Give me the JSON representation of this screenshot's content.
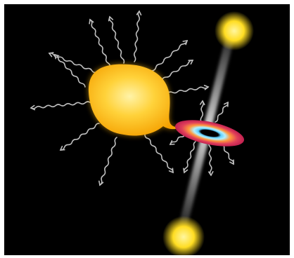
{
  "scene": {
    "subject": "star-with-accretion-disk-and-jets",
    "colors": {
      "background": "#000000",
      "frame": "#ffffff",
      "star_core": "#fff3a8",
      "star_mid": "#ffd23a",
      "star_edge": "#f5a000",
      "disk_outer": "#e0405a",
      "disk_mid": "#ff9a3c",
      "disk_blue": "#5fd0ff",
      "disk_hole": "#000000",
      "jet": "#e8e8e8",
      "jet_blob": "#ffdd22",
      "wave": "#bfbfbf"
    },
    "star_wave_count": 12,
    "disk_wave_count": 6,
    "jet_blob_count": 2
  }
}
